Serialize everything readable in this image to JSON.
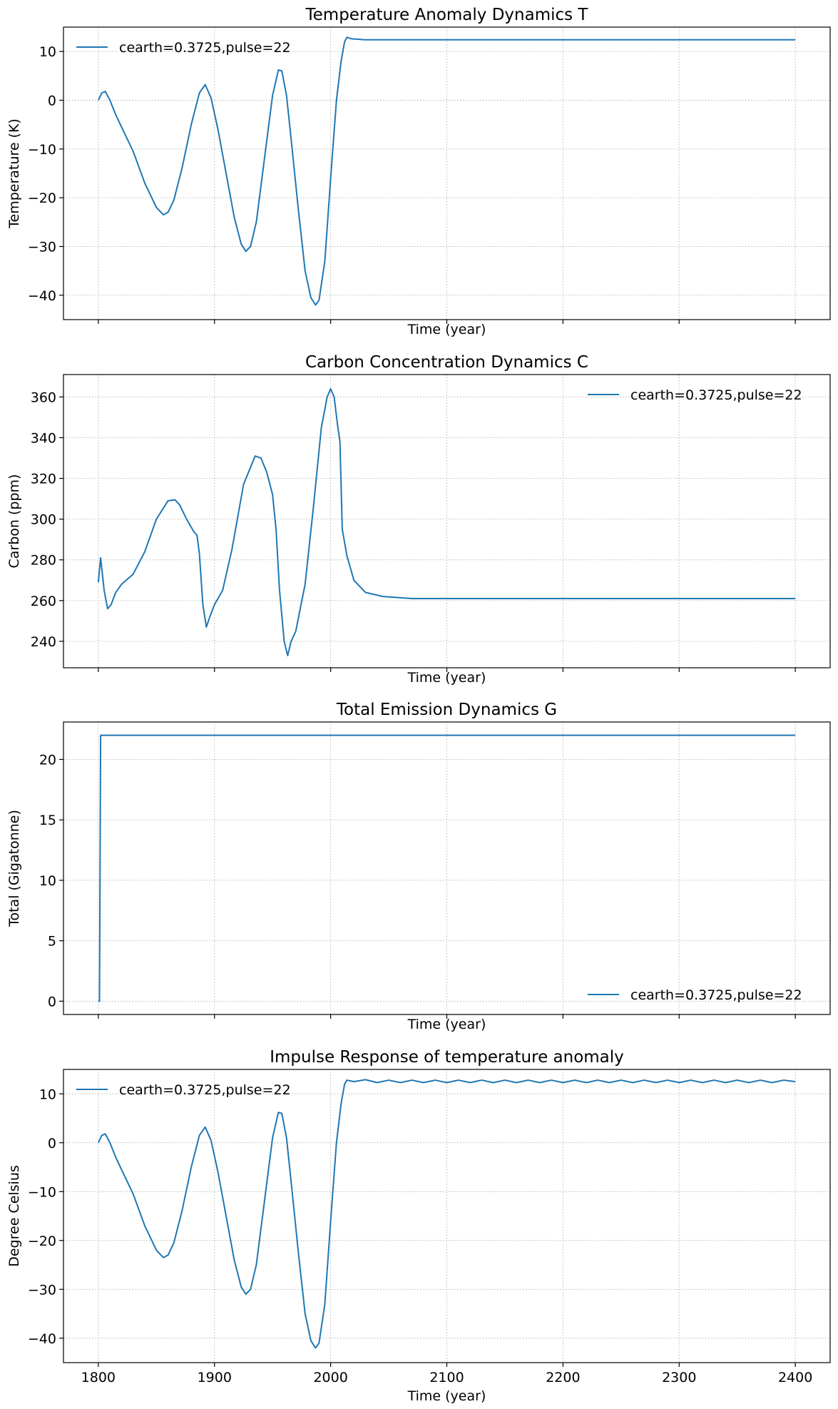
{
  "chart_data": [
    {
      "type": "line",
      "title": "Temperature Anomaly Dynamics T",
      "xlabel": "Time (year)",
      "ylabel": "Temperature (K)",
      "xlim": [
        1770,
        2430
      ],
      "ylim": [
        -45,
        15
      ],
      "xticks": [
        1800,
        1900,
        2000,
        2100,
        2200,
        2300,
        2400
      ],
      "yticks": [
        10,
        0,
        -10,
        -20,
        -30,
        -40
      ],
      "show_xticklabels": false,
      "grid": true,
      "legend": "top-left",
      "series": [
        {
          "name": "cearth=0.3725,pulse=22",
          "color": "#1f77b4",
          "x": [
            1800,
            1803,
            1806,
            1810,
            1815,
            1820,
            1830,
            1840,
            1850,
            1856,
            1860,
            1865,
            1872,
            1880,
            1887,
            1892,
            1897,
            1903,
            1910,
            1917,
            1923,
            1927,
            1931,
            1936,
            1943,
            1950,
            1955,
            1958,
            1962,
            1966,
            1972,
            1978,
            1983,
            1987,
            1990,
            1995,
            2000,
            2005,
            2009,
            2012,
            2014,
            2018,
            2030,
            2050,
            2100,
            2200,
            2300,
            2400
          ],
          "y": [
            0,
            1.5,
            1.8,
            0,
            -3,
            -5.5,
            -10.5,
            -17,
            -22,
            -23.5,
            -23,
            -20.5,
            -14,
            -5,
            1.5,
            3.2,
            0.5,
            -6,
            -15,
            -24,
            -29.5,
            -31,
            -30,
            -25,
            -12,
            1,
            6.2,
            6,
            1,
            -8,
            -22,
            -35,
            -40.5,
            -42,
            -41,
            -33,
            -16,
            0,
            8,
            12,
            12.9,
            12.6,
            12.4,
            12.4,
            12.4,
            12.4,
            12.4,
            12.4
          ]
        }
      ]
    },
    {
      "type": "line",
      "title": "Carbon Concentration Dynamics C",
      "xlabel": "Time (year)",
      "ylabel": "Carbon (ppm)",
      "xlim": [
        1770,
        2430
      ],
      "ylim": [
        227,
        371
      ],
      "xticks": [
        1800,
        1900,
        2000,
        2100,
        2200,
        2300,
        2400
      ],
      "yticks": [
        360,
        340,
        320,
        300,
        280,
        260,
        240
      ],
      "show_xticklabels": false,
      "grid": true,
      "legend": "top-right",
      "series": [
        {
          "name": "cearth=0.3725,pulse=22",
          "color": "#1f77b4",
          "x": [
            1800,
            1802,
            1805,
            1808,
            1811,
            1815,
            1820,
            1830,
            1840,
            1850,
            1860,
            1866,
            1870,
            1876,
            1882,
            1885,
            1887,
            1890,
            1893,
            1896,
            1900,
            1907,
            1915,
            1925,
            1935,
            1940,
            1945,
            1950,
            1953,
            1956,
            1960,
            1963,
            1966,
            1970,
            1978,
            1985,
            1992,
            1997,
            2000,
            2003,
            2006,
            2008,
            2010,
            2014,
            2020,
            2030,
            2045,
            2070,
            2100,
            2200,
            2300,
            2400
          ],
          "y": [
            269,
            281,
            265,
            256,
            258,
            264,
            268,
            273,
            284,
            300,
            309,
            309.5,
            307,
            300,
            294,
            292,
            283,
            258,
            247,
            252,
            258,
            265,
            285,
            317,
            331,
            330,
            323,
            312,
            295,
            265,
            240,
            233,
            240,
            245,
            268,
            305,
            345,
            360,
            364,
            360,
            346,
            338,
            295,
            282,
            270,
            264,
            262,
            261,
            261,
            261,
            261,
            261
          ]
        }
      ]
    },
    {
      "type": "line",
      "title": "Total Emission Dynamics G",
      "xlabel": "Time (year)",
      "ylabel": "Total (Gigatonne)",
      "xlim": [
        1770,
        2430
      ],
      "ylim": [
        -1.1,
        23.1
      ],
      "xticks": [
        1800,
        1900,
        2000,
        2100,
        2200,
        2300,
        2400
      ],
      "yticks": [
        20,
        15,
        10,
        5,
        0
      ],
      "show_xticklabels": false,
      "grid": true,
      "legend": "bottom-right",
      "series": [
        {
          "name": "cearth=0.3725,pulse=22",
          "color": "#1f77b4",
          "x": [
            1800,
            1801,
            1802,
            1803,
            1820,
            2000,
            2200,
            2400
          ],
          "y": [
            0,
            0,
            22,
            22,
            22,
            22,
            22,
            22
          ]
        }
      ]
    },
    {
      "type": "line",
      "title": "Impulse Response of temperature anomaly",
      "xlabel": "Time (year)",
      "ylabel": "Degree Celsius",
      "xlim": [
        1770,
        2430
      ],
      "ylim": [
        -45,
        15
      ],
      "xticks": [
        1800,
        1900,
        2000,
        2100,
        2200,
        2300,
        2400
      ],
      "yticks": [
        10,
        0,
        -10,
        -20,
        -30,
        -40
      ],
      "show_xticklabels": true,
      "grid": true,
      "legend": "top-left",
      "series": [
        {
          "name": "cearth=0.3725,pulse=22",
          "color": "#1f77b4",
          "x": [
            1800,
            1803,
            1806,
            1810,
            1815,
            1820,
            1830,
            1840,
            1850,
            1856,
            1860,
            1865,
            1872,
            1880,
            1887,
            1892,
            1897,
            1903,
            1910,
            1917,
            1923,
            1927,
            1931,
            1936,
            1943,
            1950,
            1955,
            1958,
            1962,
            1966,
            1972,
            1978,
            1983,
            1987,
            1990,
            1995,
            2000,
            2005,
            2009,
            2012,
            2014,
            2020,
            2030,
            2040,
            2050,
            2060,
            2070,
            2080,
            2090,
            2100,
            2110,
            2120,
            2130,
            2140,
            2150,
            2160,
            2170,
            2180,
            2190,
            2200,
            2210,
            2220,
            2230,
            2240,
            2250,
            2260,
            2270,
            2280,
            2290,
            2300,
            2310,
            2320,
            2330,
            2340,
            2350,
            2360,
            2370,
            2380,
            2390,
            2400
          ],
          "y": [
            0,
            1.5,
            1.8,
            0,
            -3,
            -5.5,
            -10.5,
            -17,
            -22,
            -23.5,
            -23,
            -20.5,
            -14,
            -5,
            1.5,
            3.2,
            0.5,
            -6,
            -15,
            -24,
            -29.5,
            -31,
            -30,
            -25,
            -12,
            1,
            6.2,
            6,
            1,
            -8,
            -22,
            -35,
            -40.5,
            -42,
            -41,
            -33,
            -16,
            0,
            8,
            12,
            12.8,
            12.5,
            12.9,
            12.3,
            12.8,
            12.3,
            12.8,
            12.3,
            12.8,
            12.3,
            12.8,
            12.3,
            12.8,
            12.3,
            12.8,
            12.3,
            12.8,
            12.3,
            12.8,
            12.3,
            12.8,
            12.3,
            12.8,
            12.3,
            12.8,
            12.3,
            12.8,
            12.3,
            12.8,
            12.3,
            12.8,
            12.3,
            12.8,
            12.3,
            12.8,
            12.3,
            12.8,
            12.3,
            12.8,
            12.5
          ]
        }
      ]
    }
  ]
}
